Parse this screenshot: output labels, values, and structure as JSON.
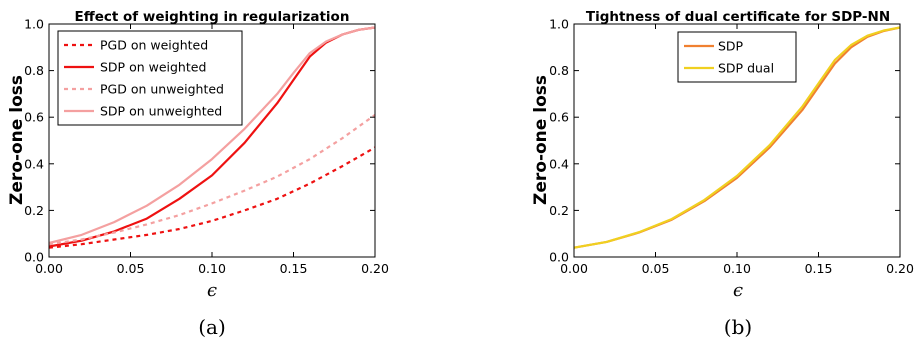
{
  "chart_data": [
    {
      "type": "line",
      "title": "Effect of weighting in regularization",
      "xlabel": "ϵ",
      "ylabel": "Zero-one loss",
      "caption": "(a)",
      "xlim": [
        0.0,
        0.2
      ],
      "ylim": [
        0.0,
        1.0
      ],
      "xticks": [
        "0.00",
        "0.05",
        "0.10",
        "0.15",
        "0.20"
      ],
      "yticks": [
        "0.0",
        "0.2",
        "0.4",
        "0.6",
        "0.8",
        "1.0"
      ],
      "grid": false,
      "legend_position": "top-left",
      "series": [
        {
          "name": "PGD on weighted",
          "color": "#ee1111",
          "style": "dashed",
          "x": [
            0.0,
            0.02,
            0.04,
            0.06,
            0.08,
            0.1,
            0.12,
            0.14,
            0.16,
            0.18,
            0.2
          ],
          "y": [
            0.04,
            0.055,
            0.075,
            0.095,
            0.12,
            0.155,
            0.2,
            0.25,
            0.315,
            0.39,
            0.47
          ]
        },
        {
          "name": "SDP on weighted",
          "color": "#ee1111",
          "style": "solid",
          "x": [
            0.0,
            0.02,
            0.04,
            0.06,
            0.08,
            0.1,
            0.12,
            0.14,
            0.15,
            0.16,
            0.17,
            0.18,
            0.19,
            0.2
          ],
          "y": [
            0.045,
            0.07,
            0.11,
            0.165,
            0.25,
            0.35,
            0.49,
            0.66,
            0.76,
            0.86,
            0.92,
            0.955,
            0.975,
            0.985
          ]
        },
        {
          "name": "PGD on unweighted",
          "color": "#f4a0a0",
          "style": "dashed",
          "x": [
            0.0,
            0.02,
            0.04,
            0.06,
            0.08,
            0.1,
            0.12,
            0.14,
            0.16,
            0.18,
            0.2
          ],
          "y": [
            0.055,
            0.075,
            0.105,
            0.14,
            0.18,
            0.23,
            0.285,
            0.345,
            0.42,
            0.51,
            0.61
          ]
        },
        {
          "name": "SDP on unweighted",
          "color": "#f4a0a0",
          "style": "solid",
          "x": [
            0.0,
            0.02,
            0.04,
            0.06,
            0.08,
            0.1,
            0.12,
            0.14,
            0.15,
            0.16,
            0.17,
            0.18,
            0.19,
            0.2
          ],
          "y": [
            0.06,
            0.095,
            0.15,
            0.22,
            0.31,
            0.42,
            0.55,
            0.7,
            0.79,
            0.875,
            0.925,
            0.955,
            0.975,
            0.985
          ]
        }
      ]
    },
    {
      "type": "line",
      "title": "Tightness of dual certificate for SDP-NN",
      "xlabel": "ϵ",
      "ylabel": "Zero-one loss",
      "caption": "(b)",
      "xlim": [
        0.0,
        0.2
      ],
      "ylim": [
        0.0,
        1.0
      ],
      "xticks": [
        "0.00",
        "0.05",
        "0.10",
        "0.15",
        "0.20"
      ],
      "yticks": [
        "0.0",
        "0.2",
        "0.4",
        "0.6",
        "0.8",
        "1.0"
      ],
      "grid": false,
      "legend_position": "top-center",
      "series": [
        {
          "name": "SDP",
          "color": "#f08030",
          "style": "solid",
          "x": [
            0.0,
            0.02,
            0.04,
            0.06,
            0.08,
            0.1,
            0.12,
            0.14,
            0.15,
            0.16,
            0.17,
            0.18,
            0.19,
            0.2
          ],
          "y": [
            0.04,
            0.065,
            0.105,
            0.16,
            0.24,
            0.34,
            0.47,
            0.63,
            0.73,
            0.83,
            0.9,
            0.945,
            0.97,
            0.985
          ]
        },
        {
          "name": "SDP dual",
          "color": "#f0d020",
          "style": "solid",
          "x": [
            0.0,
            0.02,
            0.04,
            0.06,
            0.08,
            0.1,
            0.12,
            0.14,
            0.15,
            0.16,
            0.17,
            0.18,
            0.19,
            0.2
          ],
          "y": [
            0.04,
            0.065,
            0.107,
            0.163,
            0.245,
            0.348,
            0.48,
            0.645,
            0.745,
            0.845,
            0.91,
            0.95,
            0.972,
            0.985
          ]
        }
      ]
    }
  ]
}
